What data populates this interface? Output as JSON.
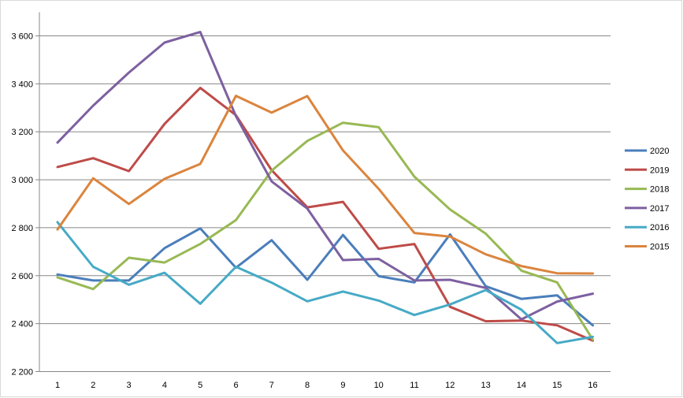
{
  "chart_data": {
    "type": "line",
    "title": "",
    "xlabel": "",
    "ylabel": "",
    "categories": [
      "1",
      "2",
      "3",
      "4",
      "5",
      "6",
      "7",
      "8",
      "9",
      "10",
      "11",
      "12",
      "13",
      "14",
      "15",
      "16"
    ],
    "ylim": [
      2200,
      3700
    ],
    "yticks": [
      2200,
      2400,
      2600,
      2800,
      3000,
      3200,
      3400,
      3600
    ],
    "ytick_labels": [
      "2 200",
      "2 400",
      "2 600",
      "2 800",
      "3 000",
      "3 200",
      "3 400",
      "3 600"
    ],
    "grid": "horizontal",
    "legend_position": "right",
    "series": [
      {
        "name": "2020",
        "color": "#4a7ebb",
        "values": [
          2605,
          2580,
          2580,
          2715,
          2797,
          2633,
          2748,
          2583,
          2770,
          2598,
          2572,
          2772,
          2556,
          2503,
          2518,
          2393
        ]
      },
      {
        "name": "2019",
        "color": "#be4b48",
        "values": [
          3053,
          3090,
          3036,
          3233,
          3383,
          3269,
          3040,
          2885,
          2908,
          2712,
          2732,
          2470,
          2410,
          2413,
          2393,
          2329
        ]
      },
      {
        "name": "2018",
        "color": "#98b954",
        "values": [
          2593,
          2544,
          2675,
          2655,
          2732,
          2832,
          3038,
          3162,
          3238,
          3219,
          3013,
          2876,
          2775,
          2621,
          2572,
          2333
        ]
      },
      {
        "name": "2017",
        "color": "#7d60a0",
        "values": [
          3155,
          3309,
          3447,
          3572,
          3616,
          3265,
          2993,
          2880,
          2665,
          2670,
          2580,
          2583,
          2549,
          2418,
          2492,
          2525
        ]
      },
      {
        "name": "2016",
        "color": "#46aac5",
        "values": [
          2823,
          2637,
          2562,
          2612,
          2483,
          2637,
          2571,
          2493,
          2534,
          2496,
          2436,
          2480,
          2540,
          2458,
          2319,
          2345
        ]
      },
      {
        "name": "2015",
        "color": "#db843d",
        "values": [
          2793,
          3006,
          2899,
          3004,
          3066,
          3350,
          3280,
          3349,
          3122,
          2962,
          2778,
          2763,
          2689,
          2640,
          2610,
          2609
        ]
      }
    ]
  }
}
